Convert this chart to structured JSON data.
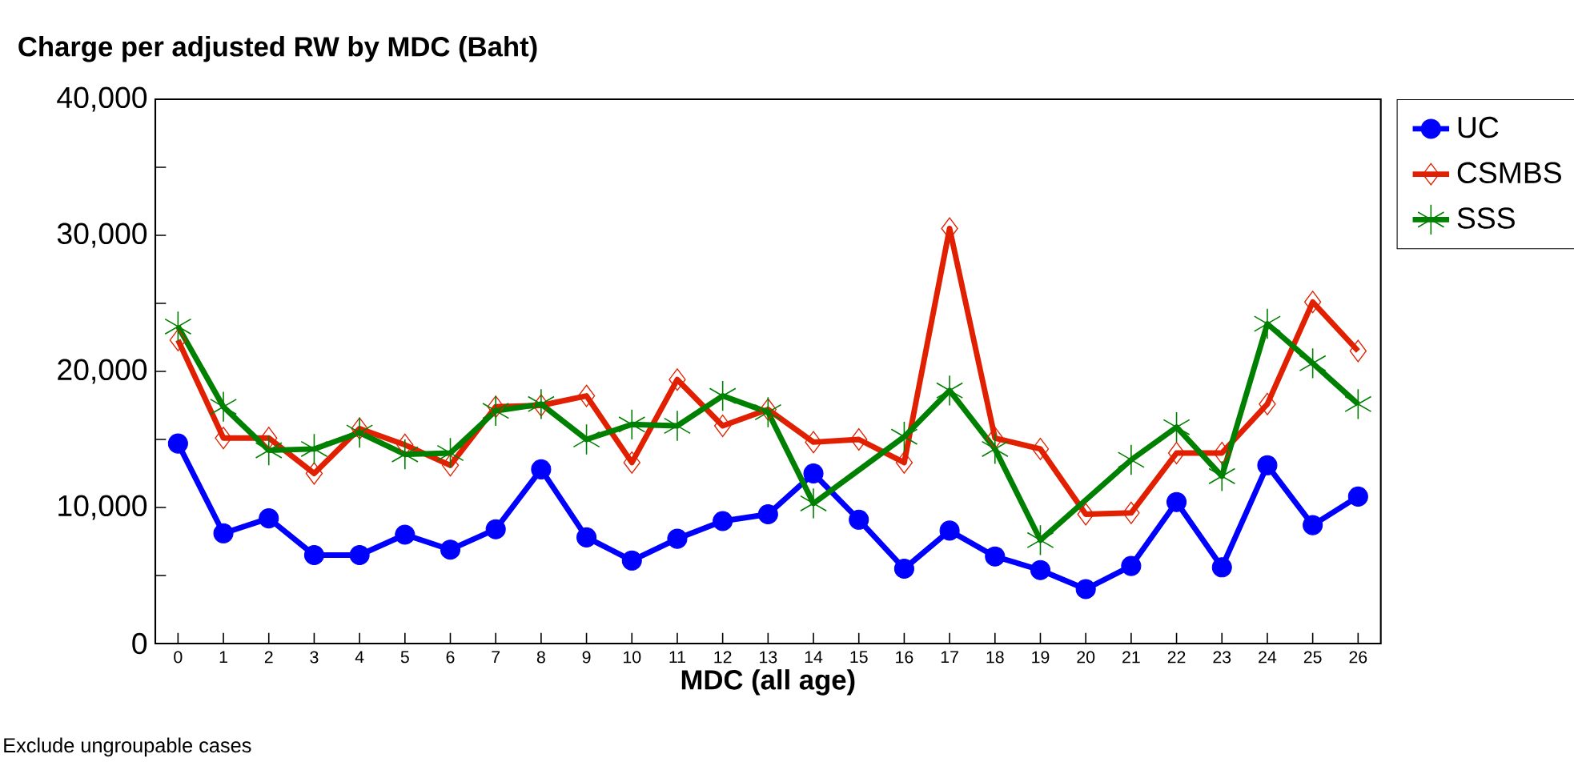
{
  "chart_data": {
    "type": "line",
    "title": "Charge per adjusted RW by MDC (Baht)",
    "xlabel": "MDC (all age)",
    "annotations": [
      "Exclude ungroupable cases"
    ],
    "x": [
      0,
      1,
      2,
      3,
      4,
      5,
      6,
      7,
      8,
      9,
      10,
      11,
      12,
      13,
      14,
      15,
      16,
      17,
      18,
      19,
      20,
      21,
      22,
      23,
      24,
      25,
      26
    ],
    "xlim": [
      -0.5,
      26.5
    ],
    "xticks": [
      0,
      1,
      2,
      3,
      4,
      5,
      6,
      7,
      8,
      9,
      10,
      11,
      12,
      13,
      14,
      15,
      16,
      17,
      18,
      19,
      20,
      21,
      22,
      23,
      24,
      25,
      26
    ],
    "ylim": [
      0,
      40000
    ],
    "yticks": [
      {
        "value": 0,
        "label": "0"
      },
      {
        "value": 5000,
        "label": null
      },
      {
        "value": 10000,
        "label": "10,000"
      },
      {
        "value": 15000,
        "label": null
      },
      {
        "value": 20000,
        "label": "20,000"
      },
      {
        "value": 25000,
        "label": null
      },
      {
        "value": 30000,
        "label": "30,000"
      },
      {
        "value": 35000,
        "label": null
      },
      {
        "value": 40000,
        "label": "40,000"
      }
    ],
    "grid": false,
    "legend": "right",
    "series": [
      {
        "name": "UC",
        "color": "#0000ff",
        "marker": "circle",
        "values": [
          14700,
          8100,
          9200,
          6500,
          6500,
          8000,
          6900,
          8400,
          12800,
          7800,
          6100,
          7700,
          9000,
          9500,
          12500,
          9100,
          5500,
          8300,
          6400,
          5400,
          4000,
          5700,
          10400,
          5600,
          13100,
          8700,
          10800
        ]
      },
      {
        "name": "CSMBS",
        "color": "#e02000",
        "marker": "diamond",
        "values": [
          22300,
          15100,
          15100,
          12500,
          15800,
          14600,
          13100,
          17400,
          17500,
          18200,
          13300,
          19400,
          16000,
          17200,
          14800,
          15000,
          13300,
          30500,
          15100,
          14300,
          9500,
          9600,
          14000,
          14000,
          17600,
          25100,
          21500
        ]
      },
      {
        "name": "SSS",
        "color": "#008000",
        "marker": "cross",
        "x": [
          0,
          1,
          2,
          3,
          4,
          5,
          6,
          7,
          8,
          9,
          10,
          11,
          12,
          13,
          14,
          16,
          17,
          18,
          19,
          21,
          22,
          23,
          24,
          25,
          26
        ],
        "values": [
          23300,
          17400,
          14200,
          14300,
          15500,
          13900,
          14000,
          17100,
          17600,
          15000,
          16100,
          16000,
          18200,
          17000,
          10300,
          15200,
          18600,
          14300,
          7600,
          13500,
          15900,
          12300,
          23500,
          20600,
          17600
        ]
      }
    ]
  }
}
